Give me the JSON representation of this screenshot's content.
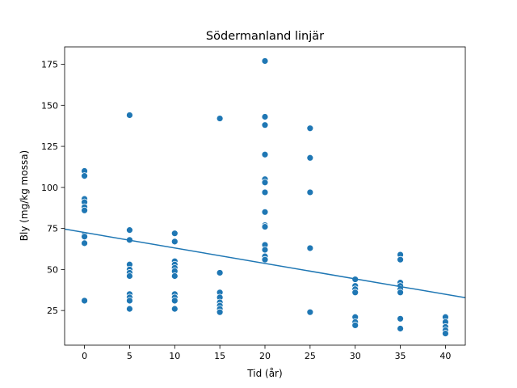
{
  "chart_data": {
    "type": "scatter",
    "title": "Södermanland linjär",
    "xlabel": "Tid (år)",
    "ylabel": "Bly (mg/kg mossa)",
    "xlim": [
      -2.2,
      42.2
    ],
    "ylim": [
      3.9,
      185.6
    ],
    "xticks": [
      0,
      5,
      10,
      15,
      20,
      25,
      30,
      35,
      40
    ],
    "yticks": [
      25,
      50,
      75,
      100,
      125,
      150,
      175
    ],
    "grid": false,
    "legend": "none",
    "colors": {
      "points": "#1f77b4",
      "line": "#1f77b4",
      "frame": "#000000"
    },
    "points": [
      {
        "x": 0,
        "y": 110
      },
      {
        "x": 0,
        "y": 107
      },
      {
        "x": 0,
        "y": 93
      },
      {
        "x": 0,
        "y": 91
      },
      {
        "x": 0,
        "y": 88
      },
      {
        "x": 0,
        "y": 86
      },
      {
        "x": 0,
        "y": 71
      },
      {
        "x": 0,
        "y": 70
      },
      {
        "x": 0,
        "y": 66
      },
      {
        "x": 0,
        "y": 31
      },
      {
        "x": 5,
        "y": 144
      },
      {
        "x": 5,
        "y": 74
      },
      {
        "x": 5,
        "y": 68
      },
      {
        "x": 5,
        "y": 53
      },
      {
        "x": 5,
        "y": 50
      },
      {
        "x": 5,
        "y": 48
      },
      {
        "x": 5,
        "y": 46
      },
      {
        "x": 5,
        "y": 35
      },
      {
        "x": 5,
        "y": 33
      },
      {
        "x": 5,
        "y": 31
      },
      {
        "x": 5,
        "y": 26
      },
      {
        "x": 10,
        "y": 72
      },
      {
        "x": 10,
        "y": 67
      },
      {
        "x": 10,
        "y": 55
      },
      {
        "x": 10,
        "y": 53
      },
      {
        "x": 10,
        "y": 51
      },
      {
        "x": 10,
        "y": 49
      },
      {
        "x": 10,
        "y": 46
      },
      {
        "x": 10,
        "y": 35
      },
      {
        "x": 10,
        "y": 33
      },
      {
        "x": 10,
        "y": 31
      },
      {
        "x": 10,
        "y": 26
      },
      {
        "x": 15,
        "y": 142
      },
      {
        "x": 15,
        "y": 48
      },
      {
        "x": 15,
        "y": 36
      },
      {
        "x": 15,
        "y": 33
      },
      {
        "x": 15,
        "y": 30
      },
      {
        "x": 15,
        "y": 28
      },
      {
        "x": 15,
        "y": 26
      },
      {
        "x": 15,
        "y": 24
      },
      {
        "x": 20,
        "y": 177
      },
      {
        "x": 20,
        "y": 143
      },
      {
        "x": 20,
        "y": 138
      },
      {
        "x": 20,
        "y": 120
      },
      {
        "x": 20,
        "y": 105
      },
      {
        "x": 20,
        "y": 103
      },
      {
        "x": 20,
        "y": 97
      },
      {
        "x": 20,
        "y": 85
      },
      {
        "x": 20,
        "y": 77
      },
      {
        "x": 20,
        "y": 76
      },
      {
        "x": 20,
        "y": 65
      },
      {
        "x": 20,
        "y": 62
      },
      {
        "x": 20,
        "y": 58
      },
      {
        "x": 20,
        "y": 56
      },
      {
        "x": 25,
        "y": 136
      },
      {
        "x": 25,
        "y": 118
      },
      {
        "x": 25,
        "y": 97
      },
      {
        "x": 25,
        "y": 63
      },
      {
        "x": 25,
        "y": 24
      },
      {
        "x": 30,
        "y": 44
      },
      {
        "x": 30,
        "y": 40
      },
      {
        "x": 30,
        "y": 38
      },
      {
        "x": 30,
        "y": 36
      },
      {
        "x": 30,
        "y": 21
      },
      {
        "x": 30,
        "y": 18
      },
      {
        "x": 30,
        "y": 16
      },
      {
        "x": 35,
        "y": 59
      },
      {
        "x": 35,
        "y": 56
      },
      {
        "x": 35,
        "y": 42
      },
      {
        "x": 35,
        "y": 40
      },
      {
        "x": 35,
        "y": 38
      },
      {
        "x": 35,
        "y": 36
      },
      {
        "x": 35,
        "y": 20
      },
      {
        "x": 35,
        "y": 14
      },
      {
        "x": 40,
        "y": 21
      },
      {
        "x": 40,
        "y": 18
      },
      {
        "x": 40,
        "y": 15
      },
      {
        "x": 40,
        "y": 13
      },
      {
        "x": 40,
        "y": 11
      }
    ],
    "regression_line": {
      "x": [
        -2.2,
        42.2
      ],
      "y": [
        74.6,
        32.8
      ]
    }
  }
}
